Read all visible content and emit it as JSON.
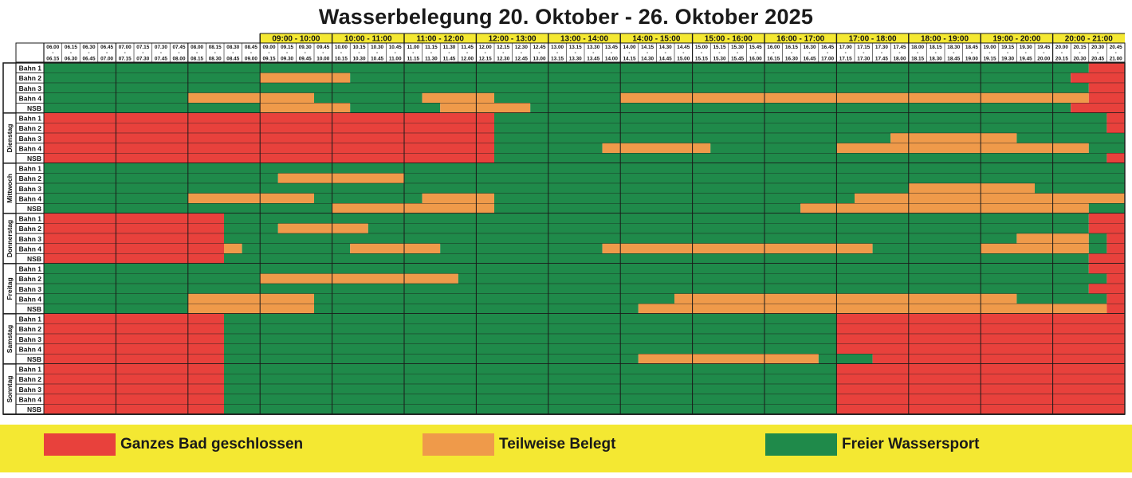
{
  "title": "Wasserbelegung 20. Oktober - 26. Oktober 2025",
  "colors": {
    "closed": "#e8413c",
    "partial": "#ef9a4a",
    "free": "#1f8a4a",
    "header": "#f4e832",
    "grid": "#1a1a1a"
  },
  "hours": [
    "09:00 - 10:00",
    "10:00 - 11:00",
    "11:00 - 12:00",
    "12:00 - 13:00",
    "13:00 - 14:00",
    "14:00 - 15:00",
    "15:00 - 16:00",
    "16:00 - 17:00",
    "17:00 - 18:00",
    "18:00 - 19:00",
    "19:00 - 20:00",
    "20:00 - 21:00"
  ],
  "slot_start": [
    "06.00",
    "06.15",
    "06.30",
    "06.45",
    "07.00",
    "07.15",
    "07.30",
    "07.45",
    "08.00",
    "08.15",
    "08.30",
    "08.45",
    "09.00",
    "09.15",
    "09.30",
    "09.45",
    "10.00",
    "10.15",
    "10.30",
    "10.45",
    "11.00",
    "11.15",
    "11.30",
    "11.45",
    "12.00",
    "12.15",
    "12.30",
    "12.45",
    "13.00",
    "13.15",
    "13.30",
    "13.45",
    "14.00",
    "14.15",
    "14.30",
    "14.45",
    "15.00",
    "15.15",
    "15.30",
    "15.45",
    "16.00",
    "16.15",
    "16.30",
    "16.45",
    "17.00",
    "17.15",
    "17.30",
    "17.45",
    "18.00",
    "18.15",
    "18.30",
    "18.45",
    "19.00",
    "19.15",
    "19.30",
    "19.45",
    "20.00",
    "20.15",
    "20.30",
    "20.45"
  ],
  "slot_end": [
    "06.15",
    "06.30",
    "06.45",
    "07.00",
    "07.15",
    "07.30",
    "07.45",
    "08.00",
    "08.15",
    "08.30",
    "08.45",
    "09.00",
    "09.15",
    "09.30",
    "09.45",
    "10.00",
    "10.15",
    "10.30",
    "10.45",
    "11.00",
    "11.15",
    "11.30",
    "11.45",
    "12.00",
    "12.15",
    "12.30",
    "12.45",
    "13.00",
    "13.15",
    "13.30",
    "13.45",
    "14.00",
    "14.15",
    "14.30",
    "14.45",
    "15.00",
    "15.15",
    "15.30",
    "15.45",
    "16.00",
    "16.15",
    "16.30",
    "16.45",
    "17.00",
    "17.15",
    "17.30",
    "17.45",
    "18.00",
    "18.15",
    "18.30",
    "18.45",
    "19.00",
    "19.15",
    "19.30",
    "19.45",
    "20.00",
    "20.15",
    "20.30",
    "20.45",
    "21.00"
  ],
  "lanes": [
    "Bahn 1",
    "Bahn 2",
    "Bahn 3",
    "Bahn 4",
    "NSB"
  ],
  "days": [
    {
      "name": "",
      "rows": [
        "ggggggggggggggggggggggggggggggggggggggggggggggggggggggggggrr",
        "ggggggggggggoooooggggggggggggggggggggggggggggggggggggggggrrr",
        "ggggggggggggggggggggggggggggggggggggggggggggggggggggggggggrr",
        "ggggggggoooooooggggggoooogggggggoooooooooooooooooooooooooorr",
        "ggggggggggggooooogggggoooooggggggggggggggggggggggggggggggrrr"
      ]
    },
    {
      "name": "Dienstag",
      "rows": [
        "rrrrrrrrrrrrrrrrrrrrrrrrrggggggggggggggggggggggggggggggggggr",
        "rrrrrrrrrrrrrrrrrrrrrrrrrggggggggggggggggggggggggggggggggggr",
        "rrrrrrrrrrrrrrrrrrrrrrrrrggggggggggggggggggggggoooooooggggggr",
        "rrrrrrrrrrrrrrrrrrrrrrrrrggggggoooooogggggggooooooooooooooggr",
        "rrrrrrrrrrrrrrrrrrrrrrrrrggggggggggggggggggggggggggggggggggr"
      ]
    },
    {
      "name": "Mittwoch",
      "rows": [
        "ggggggggggggggggggggggggggggggggggggggggggggggggggggggggggg",
        "gggggggggggggoooooooggggggggggggggggggggggggggggggggggggggg",
        "ggggggggggggggggggggggggggggggggggggggggggggggggoooooooggggg",
        "ggggggggoooooooggggggooooggggggggggggggggggggooooooooooooooog",
        "ggggggggggggggggooooooooogggggggggggggggggoooooooooooooooogg"
      ]
    },
    {
      "name": "Donnerstag",
      "rows": [
        "rrrrrrrrrrggggggggggggggggggggggggggggggggggggggggggggggggr",
        "rrrrrrrrrrgggoooooggggggggggggggggggggggggggggggggggggggggr",
        "rrrrrrrrrrggggggggggggggggggggggggggggggggggggggggggggoooogr",
        "rrrrrrrrrroggggggooooogggggggggoooooooooooooooggggggoooooogr",
        "rrrrrrrrrrggggggggggggggggggggggggggggggggggggggggggggggggr"
      ]
    },
    {
      "name": "Freitag",
      "rows": [
        "ggggggggggggggggggggggggggggggggggggggggggggggggggggggggggr",
        "ggggggggggggoooooooooooggggggggggggggggggggggggggggggggggggr",
        "ggggggggggggggggggggggggggggggggggggggggggggggggggggggggggr",
        "ggggggggoooooooggggggggggggggggggggooooooooooooooooooogggggr",
        "ggggggggoooooooggggggggggggggggggoooooooooooooooooooooooooor"
      ]
    },
    {
      "name": "Samstag",
      "rows": [
        "rrrrrrrrrrggggggggggggggggggggggggggggggggggrrrrrrrrrrrrrrrr",
        "rrrrrrrrrrggggggggggggggggggggggggggggggggggrrrrrrrrrrrrrrrr",
        "rrrrrrrrrrggggggggggggggggggggggggggggggggggrrrrrrrrrrrrrrrr",
        "rrrrrrrrrrggggggggggggggggggggggggggggggggggrrrrrrrrrrrrrrrr",
        "rrrrrrrrrrgggggggggggggggggggggggoooooooooogggrrrrrrrrrrrrrrr"
      ]
    },
    {
      "name": "Sonntag",
      "rows": [
        "rrrrrrrrrrggggggggggggggggggggggggggggggggggrrrrrrrrrrrrrrrr",
        "rrrrrrrrrrggggggggggggggggggggggggggggggggggrrrrrrrrrrrrrrrr",
        "rrrrrrrrrrggggggggggggggggggggggggggggggggggrrrrrrrrrrrrrrrr",
        "rrrrrrrrrrggggggggggggggggggggggggggggggggggrrrrrrrrrrrrrrrr",
        "rrrrrrrrrrggggggggggggggggggggggggggggggggggrrrrrrrrrrrrrrrr"
      ]
    }
  ],
  "legend": [
    {
      "key": "closed",
      "label": "Ganzes Bad geschlossen"
    },
    {
      "key": "partial",
      "label": "Teilweise Belegt"
    },
    {
      "key": "free",
      "label": "Freier Wassersport"
    }
  ]
}
